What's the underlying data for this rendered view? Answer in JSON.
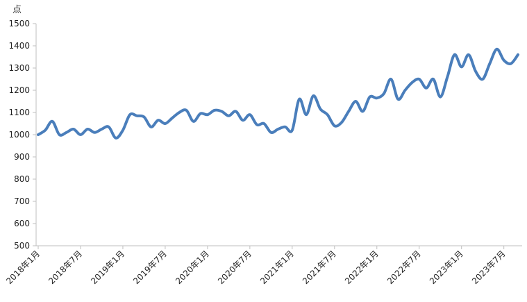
{
  "chart_data": {
    "type": "line",
    "title": "",
    "xlabel": "",
    "ylabel": "",
    "unit_label": "点",
    "ylim": [
      500,
      1500
    ],
    "yticks": [
      500,
      600,
      700,
      800,
      900,
      1000,
      1100,
      1200,
      1300,
      1400,
      1500
    ],
    "grid": false,
    "legend": "none",
    "line_color": "#4a7ebb",
    "x_tick_labels": [
      "2018年1月",
      "2018年7月",
      "2019年1月",
      "2019年7月",
      "2020年1月",
      "2020年7月",
      "2021年1月",
      "2021年7月",
      "2022年1月",
      "2022年7月",
      "2023年1月",
      "2023年7月"
    ],
    "x_start": "2018年1月",
    "x_end": "2023年10月",
    "series": [
      {
        "values": [
          1000,
          1020,
          1060,
          1000,
          1010,
          1025,
          1000,
          1025,
          1010,
          1025,
          1035,
          985,
          1020,
          1090,
          1085,
          1080,
          1035,
          1065,
          1050,
          1075,
          1100,
          1110,
          1060,
          1095,
          1090,
          1110,
          1105,
          1085,
          1105,
          1065,
          1090,
          1045,
          1050,
          1010,
          1025,
          1035,
          1020,
          1160,
          1090,
          1175,
          1115,
          1090,
          1040,
          1055,
          1105,
          1150,
          1105,
          1170,
          1165,
          1185,
          1250,
          1160,
          1200,
          1235,
          1250,
          1210,
          1250,
          1170,
          1260,
          1360,
          1305,
          1360,
          1285,
          1250,
          1320,
          1385,
          1335,
          1320,
          1360
        ]
      }
    ]
  }
}
